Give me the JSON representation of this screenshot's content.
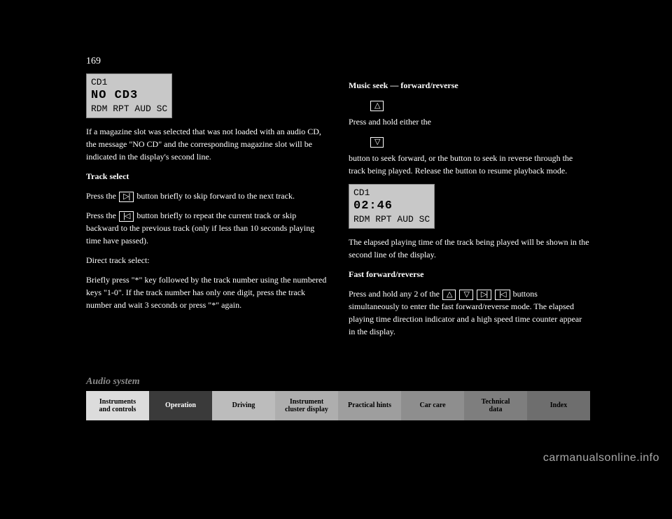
{
  "page_number": "169",
  "left_column": {
    "lcd": {
      "line1": "CD1",
      "line2": "NO CD3",
      "line3": "RDM RPT AUD SC"
    },
    "p1": "If a magazine slot was selected that was not loaded with an audio CD, the message \"NO CD\" and the corresponding magazine slot will be indicated in the display's second line.",
    "h1": "Track select",
    "p2_a": "Press the ",
    "p2_b": " button briefly to skip forward to the next track.",
    "p3_a": "Press the ",
    "p3_b": " button briefly to repeat the current track or skip backward to the previous track (only if less than 10 seconds playing time have passed).",
    "p4": "Direct track select:",
    "p5": "Briefly press \"*\" key followed by the track number using the numbered keys \"1-0\". If the track number has only one digit, press the track number and wait 3 seconds or press \"*\" again."
  },
  "right_column": {
    "h1": "Music seek — forward/reverse",
    "p1_a": "Press and hold either the ",
    "p1_b": " button to seek forward, or the ",
    "p1_c": " button to seek in reverse through the track being played. Release the button to resume playback mode.",
    "lcd": {
      "line1": "CD1",
      "line2": "02:46",
      "line3": "RDM RPT AUD SC"
    },
    "p2": "The elapsed playing time of the track being played will be shown in the second line of the display.",
    "h2": "Fast forward/reverse",
    "p3_a": "Press and hold any 2 of the ",
    "p3_b": " buttons simultaneously to enter the fast forward/reverse mode. The elapsed playing time direction indicator and a high speed time counter appear in the display."
  },
  "icons": {
    "next": "▷|",
    "prev": "|◁",
    "up": "△",
    "down": "▽"
  },
  "section_label": "Audio system",
  "tabs": [
    {
      "label": "Instruments\nand controls",
      "bg": "#dcdcdc"
    },
    {
      "label": "Operation",
      "bg": "#3a3a3a",
      "fg": "#ffffff"
    },
    {
      "label": "Driving",
      "bg": "#bcbcbc"
    },
    {
      "label": "Instrument\ncluster display",
      "bg": "#aeaeae"
    },
    {
      "label": "Practical hints",
      "bg": "#9e9e9e"
    },
    {
      "label": "Car care",
      "bg": "#8e8e8e"
    },
    {
      "label": "Technical\ndata",
      "bg": "#7e7e7e"
    },
    {
      "label": "Index",
      "bg": "#6e6e6e"
    }
  ],
  "watermark": "carmanualsonline.info"
}
